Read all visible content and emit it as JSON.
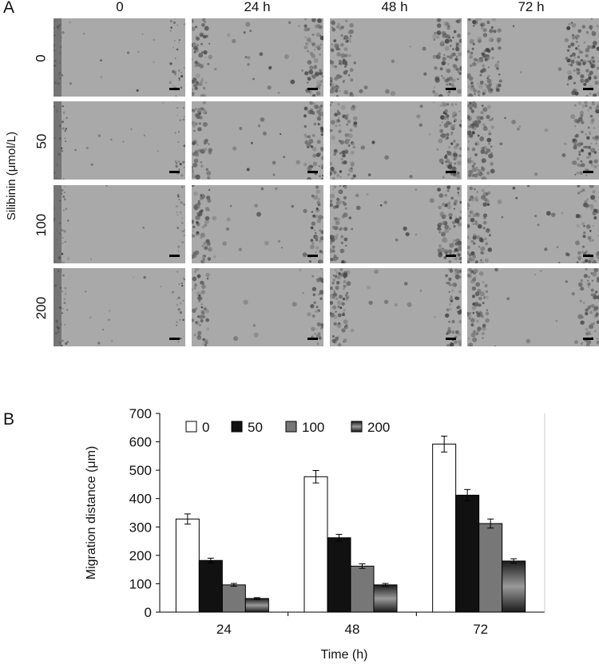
{
  "panel_a": {
    "letter": "A",
    "row_axis_title": "Silibinin (μmol/L)",
    "columns": [
      "0",
      "24 h",
      "48 h",
      "72 h"
    ],
    "rows": [
      "0",
      "50",
      "100",
      "200"
    ]
  },
  "panel_b": {
    "letter": "B"
  },
  "chart_data": {
    "type": "bar",
    "categories": [
      "24",
      "48",
      "72"
    ],
    "series": [
      {
        "name": "0",
        "values": [
          328,
          477,
          592
        ],
        "errors": [
          18,
          22,
          28
        ],
        "color": "#ffffff"
      },
      {
        "name": "50",
        "values": [
          182,
          262,
          412
        ],
        "errors": [
          8,
          12,
          20
        ],
        "color": "#111111"
      },
      {
        "name": "100",
        "values": [
          96,
          162,
          312
        ],
        "errors": [
          5,
          8,
          16
        ],
        "color": "#777777"
      },
      {
        "name": "200",
        "values": [
          48,
          96,
          180
        ],
        "errors": [
          3,
          5,
          8
        ],
        "color": "#3a3a3a"
      }
    ],
    "xlabel": "Time (h)",
    "ylabel": "Migration distance (μm)",
    "ylim": [
      0,
      700
    ],
    "yticks": [
      "0",
      "100",
      "200",
      "300",
      "400",
      "500",
      "600",
      "700"
    ],
    "legend_position": "top",
    "grid": false
  }
}
